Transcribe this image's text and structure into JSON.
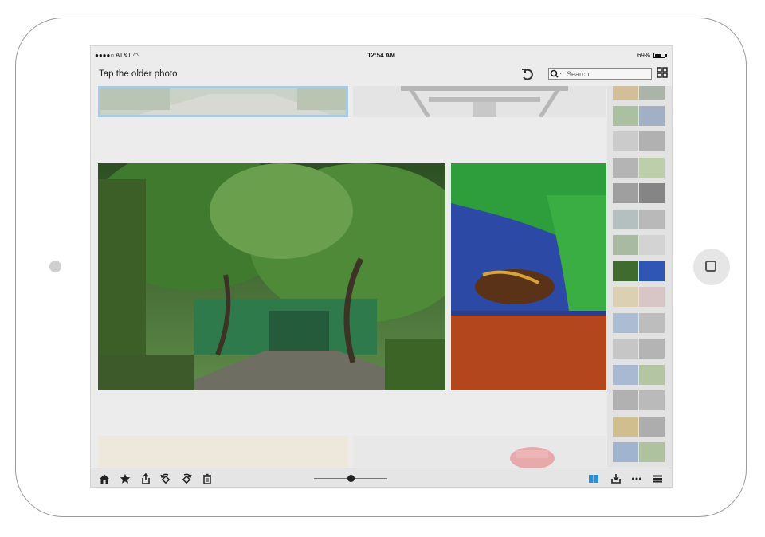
{
  "status_bar": {
    "carrier": "●●●●○ AT&T",
    "time": "12:54 AM",
    "battery": "69%",
    "battery_level": 0.69
  },
  "header": {
    "title": "Tap the older photo",
    "undo_icon": "undo-icon",
    "search_placeholder": "Search",
    "grid_icon": "grid-view-icon"
  },
  "photos": [
    {
      "name": "top-left",
      "desc_icon": "photo",
      "selected": true,
      "colors": [
        "#9bb28c",
        "#7f977a"
      ]
    },
    {
      "name": "top-right",
      "colors": [
        "#d8d8d8",
        "#b8b8b8"
      ]
    },
    {
      "name": "garden-gate",
      "colors": [
        "#2f5a24",
        "#6d8c56"
      ]
    },
    {
      "name": "woman-hands",
      "colors": [
        "#2b4ba8",
        "#b84a1f"
      ]
    },
    {
      "name": "bottom-left",
      "colors": [
        "#efe8d3",
        "#e4dcc4"
      ]
    },
    {
      "name": "bottom-right",
      "colors": [
        "#dcdcdc",
        "#e8e8e8"
      ]
    }
  ],
  "filmstrip": {
    "active_index": 7,
    "thumbs": [
      [
        "#c5a25c",
        "#7d8f7a"
      ],
      [
        "#7ea66c",
        "#6e88b0"
      ],
      [
        "#b9b9b9",
        "#8a8a8a"
      ],
      [
        "#8f8f8f",
        "#9fbf7f"
      ],
      [
        "#6a6a6a",
        "#3a3a3a"
      ],
      [
        "#8fa4a4",
        "#999999"
      ],
      [
        "#7c9a6e",
        "#c8c8c8"
      ],
      [
        "#3f6b2e",
        "#2f55b5"
      ],
      [
        "#d8c38c",
        "#d0b0b0"
      ],
      [
        "#7fa0c8",
        "#a0a0a0"
      ],
      [
        "#b0b0b0",
        "#909090"
      ],
      [
        "#7d99c5",
        "#8fae72"
      ],
      [
        "#8a8a8a",
        "#9a9a9a"
      ],
      [
        "#c4a24a",
        "#828282"
      ],
      [
        "#6b8fbf",
        "#86a86a"
      ]
    ]
  },
  "toolbar": {
    "icons": [
      "home-icon",
      "star-icon",
      "share-icon",
      "rotate-left-icon",
      "rotate-right-icon",
      "trash-icon"
    ],
    "zoom_level": 0.5,
    "right_icons": [
      "compare-view-icon",
      "download-icon",
      "more-icon",
      "menu-icon"
    ]
  },
  "colors": {
    "accent": "#2b8fd1",
    "background": "#ececec"
  }
}
